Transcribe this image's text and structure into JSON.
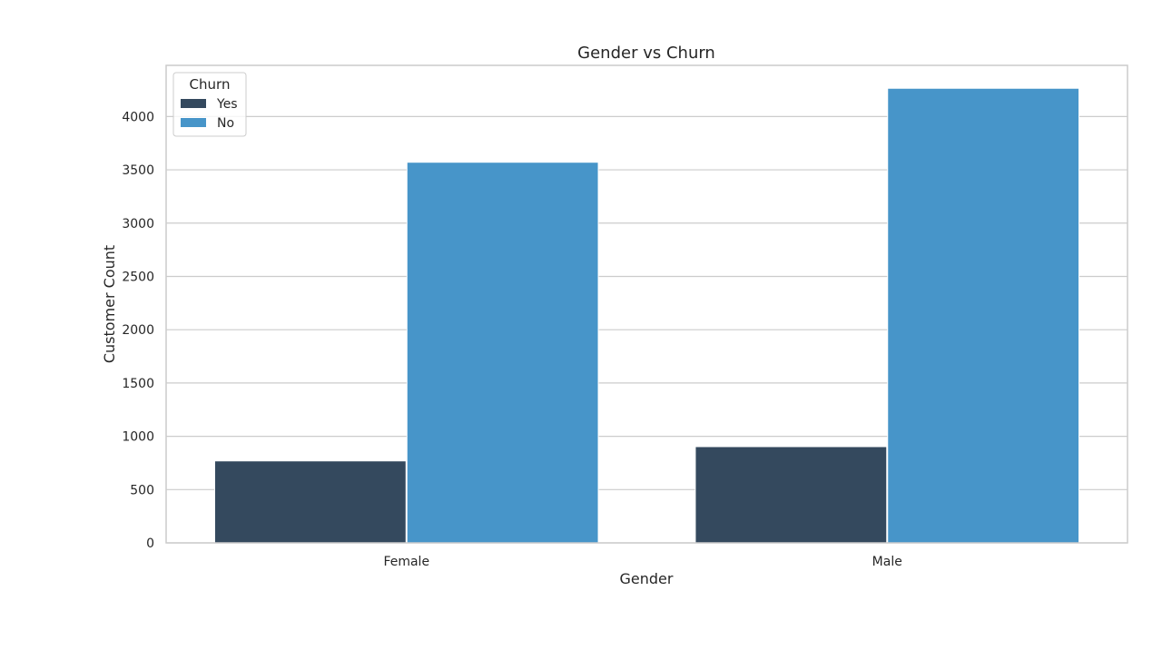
{
  "chart_data": {
    "type": "bar",
    "title": "Gender vs Churn",
    "xlabel": "Gender",
    "ylabel": "Customer Count",
    "categories": [
      "Female",
      "Male"
    ],
    "series": [
      {
        "name": "Yes",
        "values": [
          769,
          903
        ],
        "color": "#34495e"
      },
      {
        "name": "No",
        "values": [
          3571,
          4265
        ],
        "color": "#4795c9"
      }
    ],
    "ylim": [
      0,
      4480
    ],
    "yticks": [
      0,
      500,
      1000,
      1500,
      2000,
      2500,
      3000,
      3500,
      4000
    ],
    "grid": true,
    "legend": {
      "title": "Churn",
      "placement": "top-left"
    }
  }
}
